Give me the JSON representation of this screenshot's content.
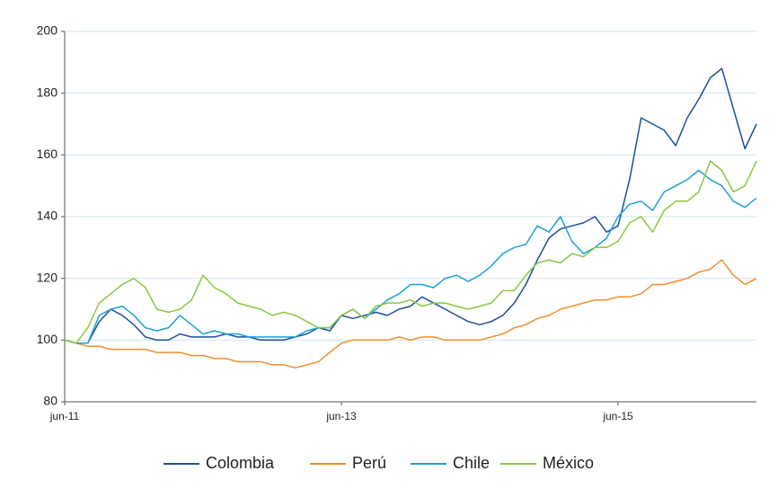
{
  "chart_data": {
    "type": "line",
    "categories": [
      "jun-11",
      null,
      null,
      null,
      null,
      null,
      null,
      null,
      null,
      null,
      null,
      null,
      null,
      null,
      null,
      null,
      null,
      null,
      null,
      null,
      null,
      null,
      null,
      null,
      "jun-13",
      null,
      null,
      null,
      null,
      null,
      null,
      null,
      null,
      null,
      null,
      null,
      null,
      null,
      null,
      null,
      null,
      null,
      null,
      null,
      null,
      null,
      null,
      null,
      "jun-15",
      null,
      null,
      null,
      null,
      null,
      null,
      null,
      null,
      null,
      null,
      null,
      null
    ],
    "series": [
      {
        "name": "Colombia",
        "color": "#1f4e9c",
        "values": [
          100,
          99,
          99,
          106,
          110,
          108,
          105,
          101,
          100,
          100,
          102,
          101,
          101,
          101,
          102,
          101,
          101,
          100,
          100,
          100,
          101,
          102,
          104,
          103,
          108,
          107,
          108,
          109,
          108,
          110,
          111,
          114,
          112,
          110,
          108,
          106,
          105,
          106,
          108,
          112,
          118,
          126,
          133,
          136,
          137,
          138,
          140,
          135,
          137,
          152,
          172,
          170,
          168,
          163,
          172,
          178,
          185,
          188,
          175,
          162,
          170
        ]
      },
      {
        "name": "Perú",
        "color": "#f28e2b",
        "values": [
          100,
          99,
          98,
          98,
          97,
          97,
          97,
          97,
          96,
          96,
          96,
          95,
          95,
          94,
          94,
          93,
          93,
          93,
          92,
          92,
          91,
          92,
          93,
          96,
          99,
          100,
          100,
          100,
          100,
          101,
          100,
          101,
          101,
          100,
          100,
          100,
          100,
          101,
          102,
          104,
          105,
          107,
          108,
          110,
          111,
          112,
          113,
          113,
          114,
          114,
          115,
          118,
          118,
          119,
          120,
          122,
          123,
          126,
          121,
          118,
          120
        ]
      },
      {
        "name": "Chile",
        "color": "#1e9fd8",
        "values": [
          100,
          99,
          99,
          108,
          110,
          111,
          108,
          104,
          103,
          104,
          108,
          105,
          102,
          103,
          102,
          102,
          101,
          101,
          101,
          101,
          101,
          103,
          104,
          104,
          108,
          110,
          107,
          110,
          113,
          115,
          118,
          118,
          117,
          120,
          121,
          119,
          121,
          124,
          128,
          130,
          131,
          137,
          135,
          140,
          132,
          128,
          130,
          133,
          140,
          144,
          145,
          142,
          148,
          150,
          152,
          155,
          152,
          150,
          145,
          143,
          146
        ]
      },
      {
        "name": "México",
        "color": "#8dc63f",
        "values": [
          100,
          99,
          104,
          112,
          115,
          118,
          120,
          117,
          110,
          109,
          110,
          113,
          121,
          117,
          115,
          112,
          111,
          110,
          108,
          109,
          108,
          106,
          104,
          104,
          108,
          110,
          107,
          111,
          112,
          112,
          113,
          111,
          112,
          112,
          111,
          110,
          111,
          112,
          116,
          116,
          121,
          125,
          126,
          125,
          128,
          127,
          130,
          130,
          132,
          138,
          140,
          135,
          142,
          145,
          145,
          148,
          158,
          155,
          148,
          150,
          158
        ]
      }
    ],
    "ylim": [
      80,
      200
    ],
    "yticks": [
      80,
      100,
      120,
      140,
      160,
      180,
      200
    ],
    "grid": true,
    "legend": "bottom"
  }
}
